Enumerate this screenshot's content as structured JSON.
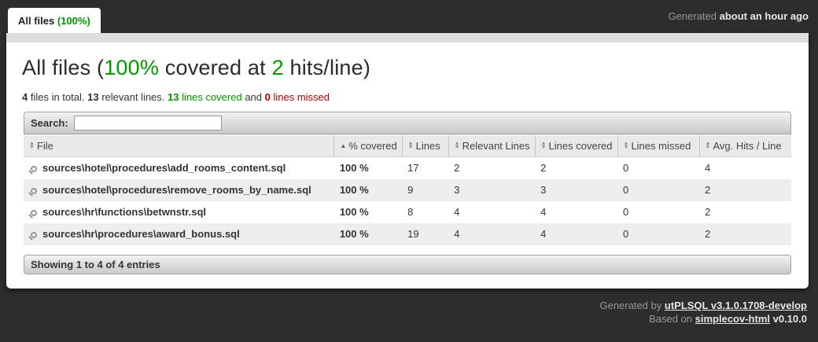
{
  "colors": {
    "accent_green": "#009900",
    "status_red": "#aa0000",
    "background": "#2d2d2d"
  },
  "tab": {
    "label": "All files ",
    "percent": "(100%)"
  },
  "header_meta": {
    "prefix": "Generated ",
    "time": "about an hour ago"
  },
  "heading": {
    "pre": "All files (",
    "percent": "100%",
    "mid": " covered at ",
    "hits": "2",
    "post": " hits/line)"
  },
  "stats": {
    "files_count": "4",
    "files_label": " files in total. ",
    "relevant_count": "13",
    "relevant_label": " relevant lines. ",
    "covered_count": "13",
    "covered_label": " lines covered",
    "and_label": " and ",
    "missed_count": "0",
    "missed_label": " lines missed"
  },
  "search": {
    "label": "Search:",
    "value": ""
  },
  "table": {
    "columns": [
      {
        "label": "File"
      },
      {
        "label": "% covered"
      },
      {
        "label": "Lines"
      },
      {
        "label": "Relevant Lines"
      },
      {
        "label": "Lines covered"
      },
      {
        "label": "Lines missed"
      },
      {
        "label": "Avg. Hits / Line"
      }
    ],
    "sort_icon_both": "▲▼",
    "sort_icon_asc": "▲",
    "rows": [
      {
        "file": "sources\\hotel\\procedures\\add_rooms_content.sql",
        "percent": "100 %",
        "lines": "17",
        "relevant": "2",
        "covered": "2",
        "missed": "0",
        "avg": "4"
      },
      {
        "file": "sources\\hotel\\procedures\\remove_rooms_by_name.sql",
        "percent": "100 %",
        "lines": "9",
        "relevant": "3",
        "covered": "3",
        "missed": "0",
        "avg": "2"
      },
      {
        "file": "sources\\hr\\functions\\betwnstr.sql",
        "percent": "100 %",
        "lines": "8",
        "relevant": "4",
        "covered": "4",
        "missed": "0",
        "avg": "2"
      },
      {
        "file": "sources\\hr\\procedures\\award_bonus.sql",
        "percent": "100 %",
        "lines": "19",
        "relevant": "4",
        "covered": "4",
        "missed": "0",
        "avg": "2"
      }
    ]
  },
  "showing_bar": {
    "text": "Showing 1 to 4 of 4 entries"
  },
  "page_footer": {
    "line1_prefix": "Generated by ",
    "line1_link": "utPLSQL v3.1.0.1708-develop",
    "line2_prefix": "Based on ",
    "line2_link": "simplecov-html",
    "line2_suffix": " v0.10.0"
  }
}
